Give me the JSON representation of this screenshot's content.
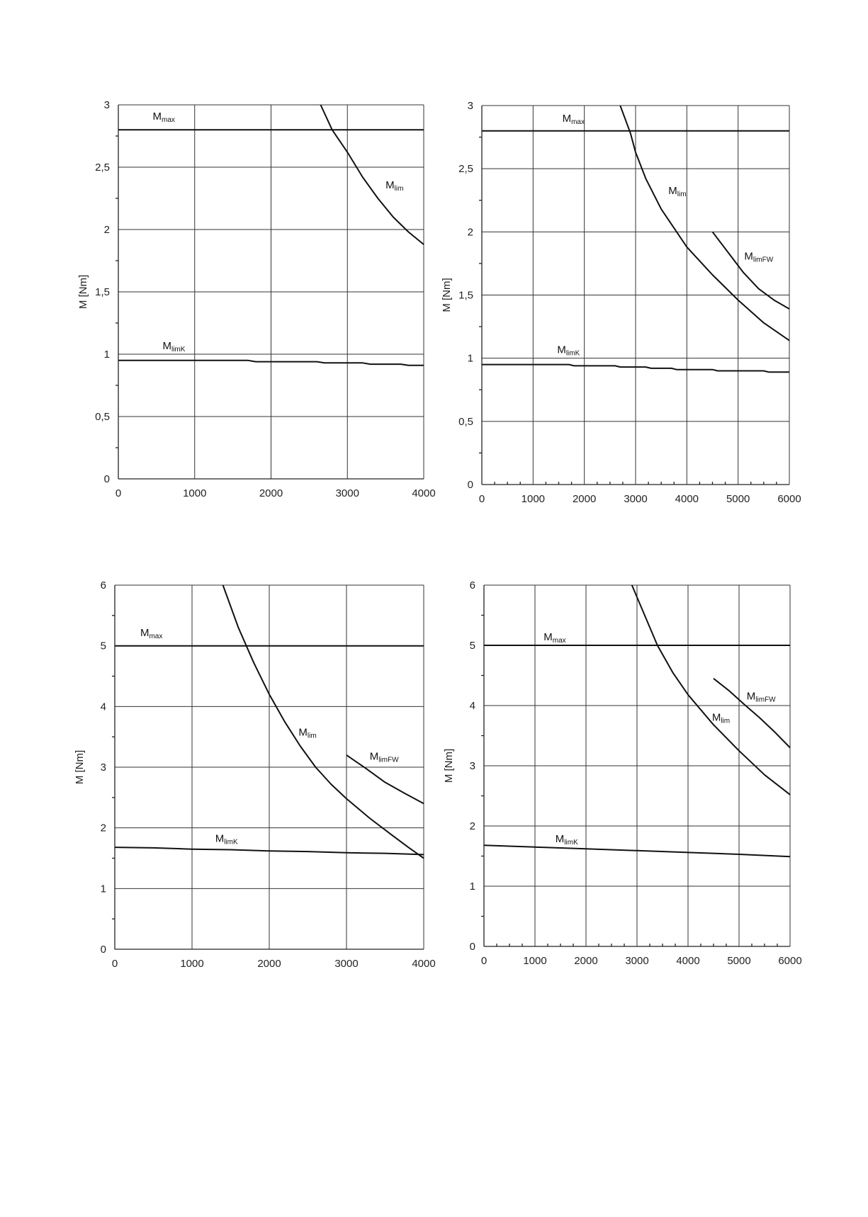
{
  "chart_data": [
    {
      "type": "line",
      "ylabel": "M [Nm]",
      "xlim": [
        0,
        4000
      ],
      "ylim": [
        0,
        3
      ],
      "xticks": [
        0,
        1000,
        2000,
        3000,
        4000
      ],
      "yticks": [
        0,
        0.5,
        1,
        1.5,
        2,
        2.5,
        3
      ],
      "ytick_labels": [
        "0",
        "0,5",
        "1",
        "1,5",
        "2",
        "2,5",
        "3"
      ],
      "grid": true,
      "series": [
        {
          "name": "Mmax",
          "label_main": "M",
          "label_sub": "max",
          "label_at": [
            450,
            2.88
          ],
          "points": [
            [
              0,
              2.8
            ],
            [
              4000,
              2.8
            ]
          ]
        },
        {
          "name": "Mlim",
          "label_main": "M",
          "label_sub": "lim",
          "label_at": [
            3500,
            2.33
          ],
          "points": [
            [
              2650,
              3.0
            ],
            [
              2800,
              2.8
            ],
            [
              3000,
              2.62
            ],
            [
              3200,
              2.42
            ],
            [
              3400,
              2.25
            ],
            [
              3600,
              2.1
            ],
            [
              3800,
              1.98
            ],
            [
              4000,
              1.88
            ]
          ]
        },
        {
          "name": "MlimK",
          "label_main": "M",
          "label_sub": "limK",
          "label_at": [
            580,
            1.04
          ],
          "points": [
            [
              0,
              0.95
            ],
            [
              1700,
              0.95
            ],
            [
              1800,
              0.94
            ],
            [
              2600,
              0.94
            ],
            [
              2700,
              0.93
            ],
            [
              3200,
              0.93
            ],
            [
              3300,
              0.92
            ],
            [
              3700,
              0.92
            ],
            [
              3800,
              0.91
            ],
            [
              4000,
              0.91
            ]
          ]
        }
      ]
    },
    {
      "type": "line",
      "ylabel": "M [Nm]",
      "xlim": [
        0,
        6000
      ],
      "ylim": [
        0,
        3
      ],
      "xticks": [
        0,
        1000,
        2000,
        3000,
        4000,
        5000,
        6000
      ],
      "yticks": [
        0,
        0.5,
        1,
        1.5,
        2,
        2.5,
        3
      ],
      "ytick_labels": [
        "0",
        "0,5",
        "1",
        "1,5",
        "2",
        "2,5",
        "3"
      ],
      "grid": true,
      "series": [
        {
          "name": "Mmax",
          "label_main": "M",
          "label_sub": "max",
          "label_at": [
            1570,
            2.87
          ],
          "points": [
            [
              0,
              2.8
            ],
            [
              6000,
              2.8
            ]
          ]
        },
        {
          "name": "Mlim",
          "label_main": "M",
          "label_sub": "lim",
          "label_at": [
            3640,
            2.3
          ],
          "points": [
            [
              2700,
              3.0
            ],
            [
              2900,
              2.78
            ],
            [
              3000,
              2.63
            ],
            [
              3200,
              2.42
            ],
            [
              3500,
              2.18
            ],
            [
              3800,
              2.0
            ],
            [
              4000,
              1.88
            ],
            [
              4500,
              1.66
            ],
            [
              5000,
              1.46
            ],
            [
              5500,
              1.28
            ],
            [
              6000,
              1.14
            ]
          ]
        },
        {
          "name": "MlimFW",
          "label_main": "M",
          "label_sub": "limFW",
          "label_at": [
            5120,
            1.78
          ],
          "points": [
            [
              4500,
              2.0
            ],
            [
              4800,
              1.84
            ],
            [
              5100,
              1.68
            ],
            [
              5400,
              1.55
            ],
            [
              5700,
              1.46
            ],
            [
              6000,
              1.39
            ]
          ]
        },
        {
          "name": "MlimK",
          "label_main": "M",
          "label_sub": "limK",
          "label_at": [
            1470,
            1.04
          ],
          "points": [
            [
              0,
              0.95
            ],
            [
              1700,
              0.95
            ],
            [
              1800,
              0.94
            ],
            [
              2600,
              0.94
            ],
            [
              2700,
              0.93
            ],
            [
              3200,
              0.93
            ],
            [
              3300,
              0.92
            ],
            [
              3700,
              0.92
            ],
            [
              3800,
              0.91
            ],
            [
              4500,
              0.91
            ],
            [
              4600,
              0.9
            ],
            [
              5500,
              0.9
            ],
            [
              5600,
              0.89
            ],
            [
              6000,
              0.89
            ]
          ]
        }
      ]
    },
    {
      "type": "line",
      "ylabel": "M [Nm]",
      "xlim": [
        0,
        4000
      ],
      "ylim": [
        0,
        6
      ],
      "xticks": [
        0,
        1000,
        2000,
        3000,
        4000
      ],
      "yticks": [
        0,
        1,
        2,
        3,
        4,
        5,
        6
      ],
      "ytick_labels": [
        "0",
        "1",
        "2",
        "3",
        "4",
        "5",
        "6"
      ],
      "grid": true,
      "series": [
        {
          "name": "Mmax",
          "label_main": "M",
          "label_sub": "max",
          "label_at": [
            330,
            5.16
          ],
          "points": [
            [
              0,
              5.0
            ],
            [
              4000,
              5.0
            ]
          ]
        },
        {
          "name": "Mlim",
          "label_main": "M",
          "label_sub": "lim",
          "label_at": [
            2380,
            3.52
          ],
          "points": [
            [
              1400,
              6.0
            ],
            [
              1600,
              5.3
            ],
            [
              1800,
              4.72
            ],
            [
              2000,
              4.2
            ],
            [
              2200,
              3.75
            ],
            [
              2400,
              3.35
            ],
            [
              2600,
              3.0
            ],
            [
              2800,
              2.72
            ],
            [
              3000,
              2.48
            ],
            [
              3300,
              2.16
            ],
            [
              3600,
              1.87
            ],
            [
              3800,
              1.68
            ],
            [
              4000,
              1.5
            ]
          ]
        },
        {
          "name": "MlimFW",
          "label_main": "M",
          "label_sub": "limFW",
          "label_at": [
            3300,
            3.12
          ],
          "points": [
            [
              3000,
              3.2
            ],
            [
              3250,
              2.98
            ],
            [
              3500,
              2.75
            ],
            [
              3750,
              2.57
            ],
            [
              4000,
              2.4
            ]
          ]
        },
        {
          "name": "MlimK",
          "label_main": "M",
          "label_sub": "limK",
          "label_at": [
            1300,
            1.77
          ],
          "points": [
            [
              0,
              1.68
            ],
            [
              500,
              1.67
            ],
            [
              1000,
              1.65
            ],
            [
              1500,
              1.64
            ],
            [
              2000,
              1.62
            ],
            [
              2500,
              1.61
            ],
            [
              3000,
              1.59
            ],
            [
              3500,
              1.58
            ],
            [
              4000,
              1.56
            ]
          ]
        }
      ]
    },
    {
      "type": "line",
      "ylabel": "M [Nm]",
      "xlim": [
        0,
        6000
      ],
      "ylim": [
        0,
        6
      ],
      "xticks": [
        0,
        1000,
        2000,
        3000,
        4000,
        5000,
        6000
      ],
      "yticks": [
        0,
        1,
        2,
        3,
        4,
        5,
        6
      ],
      "ytick_labels": [
        "0",
        "1",
        "2",
        "3",
        "4",
        "5",
        "6"
      ],
      "grid": true,
      "series": [
        {
          "name": "Mmax",
          "label_main": "M",
          "label_sub": "max",
          "label_at": [
            1170,
            5.08
          ],
          "points": [
            [
              0,
              5.0
            ],
            [
              6000,
              5.0
            ]
          ]
        },
        {
          "name": "Mlim",
          "label_main": "M",
          "label_sub": "lim",
          "label_at": [
            4470,
            3.75
          ],
          "points": [
            [
              2900,
              6.0
            ],
            [
              3100,
              5.6
            ],
            [
              3400,
              5.0
            ],
            [
              3700,
              4.55
            ],
            [
              4000,
              4.18
            ],
            [
              4500,
              3.68
            ],
            [
              5000,
              3.25
            ],
            [
              5500,
              2.85
            ],
            [
              6000,
              2.52
            ]
          ]
        },
        {
          "name": "MlimFW",
          "label_main": "M",
          "label_sub": "limFW",
          "label_at": [
            5150,
            4.1
          ],
          "points": [
            [
              4500,
              4.45
            ],
            [
              4800,
              4.25
            ],
            [
              5100,
              4.02
            ],
            [
              5400,
              3.8
            ],
            [
              5700,
              3.56
            ],
            [
              6000,
              3.3
            ]
          ]
        },
        {
          "name": "MlimK",
          "label_main": "M",
          "label_sub": "limK",
          "label_at": [
            1400,
            1.73
          ],
          "points": [
            [
              0,
              1.68
            ],
            [
              1000,
              1.65
            ],
            [
              2000,
              1.62
            ],
            [
              3000,
              1.59
            ],
            [
              4000,
              1.56
            ],
            [
              5000,
              1.53
            ],
            [
              6000,
              1.49
            ]
          ]
        }
      ]
    }
  ]
}
